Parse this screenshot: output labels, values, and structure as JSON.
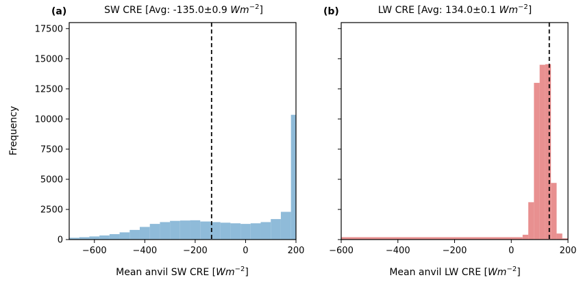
{
  "chart_data": [
    {
      "type": "bar",
      "panel_label": "(a)",
      "title_prefix": "SW CRE [Avg: -135.0±0.9 ",
      "title_unit": "Wm",
      "title_exp": "−2",
      "title_suffix": "]",
      "ylabel": "Frequency",
      "xlabel_prefix": "Mean anvil SW CRE [",
      "xlabel_unit": "Wm",
      "xlabel_exp": "−2",
      "xlabel_suffix": "]",
      "xlim": [
        -700,
        200
      ],
      "ylim": [
        0,
        18000
      ],
      "xticks": [
        -600,
        -400,
        -200,
        0,
        200
      ],
      "xtick_labels": [
        "−600",
        "−400",
        "−200",
        "0",
        "200"
      ],
      "yticks": [
        0,
        2500,
        5000,
        7500,
        10000,
        12500,
        15000,
        17500
      ],
      "ytick_labels": [
        "0",
        "2500",
        "5000",
        "7500",
        "10000",
        "12500",
        "15000",
        "17500"
      ],
      "mean": -135,
      "bar_color": "#8fbbd9",
      "bins": [
        {
          "x0": -700,
          "x1": -660,
          "y": 150
        },
        {
          "x0": -660,
          "x1": -620,
          "y": 200
        },
        {
          "x0": -620,
          "x1": -580,
          "y": 260
        },
        {
          "x0": -580,
          "x1": -540,
          "y": 340
        },
        {
          "x0": -540,
          "x1": -500,
          "y": 450
        },
        {
          "x0": -500,
          "x1": -460,
          "y": 600
        },
        {
          "x0": -460,
          "x1": -420,
          "y": 800
        },
        {
          "x0": -420,
          "x1": -380,
          "y": 1050
        },
        {
          "x0": -380,
          "x1": -340,
          "y": 1300
        },
        {
          "x0": -340,
          "x1": -300,
          "y": 1450
        },
        {
          "x0": -300,
          "x1": -260,
          "y": 1550
        },
        {
          "x0": -260,
          "x1": -220,
          "y": 1580
        },
        {
          "x0": -220,
          "x1": -180,
          "y": 1600
        },
        {
          "x0": -180,
          "x1": -140,
          "y": 1500
        },
        {
          "x0": -140,
          "x1": -100,
          "y": 1450
        },
        {
          "x0": -100,
          "x1": -60,
          "y": 1400
        },
        {
          "x0": -60,
          "x1": -20,
          "y": 1350
        },
        {
          "x0": -20,
          "x1": 20,
          "y": 1300
        },
        {
          "x0": 20,
          "x1": 60,
          "y": 1350
        },
        {
          "x0": 60,
          "x1": 100,
          "y": 1450
        },
        {
          "x0": 100,
          "x1": 140,
          "y": 1700
        },
        {
          "x0": 140,
          "x1": 180,
          "y": 2300
        },
        {
          "x0": 180,
          "x1": 220,
          "y": 10350
        }
      ]
    },
    {
      "type": "bar",
      "panel_label": "(b)",
      "title_prefix": "LW CRE [Avg: 134.0±0.1 ",
      "title_unit": "Wm",
      "title_exp": "−2",
      "title_suffix": "]",
      "xlabel_prefix": "Mean anvil LW CRE [",
      "xlabel_unit": "Wm",
      "xlabel_exp": "−2",
      "xlabel_suffix": "]",
      "xlim": [
        -600,
        200
      ],
      "ylim": [
        0,
        18000
      ],
      "xticks": [
        -600,
        -400,
        -200,
        0,
        200
      ],
      "xtick_labels": [
        "−600",
        "−400",
        "−200",
        "0",
        "200"
      ],
      "yticks": [
        0,
        2500,
        5000,
        7500,
        10000,
        12500,
        15000,
        17500
      ],
      "mean": 134,
      "bar_color": "#e89090",
      "bins": [
        {
          "x0": -600,
          "x1": 40,
          "y": 200
        },
        {
          "x0": 40,
          "x1": 60,
          "y": 400
        },
        {
          "x0": 60,
          "x1": 80,
          "y": 3100
        },
        {
          "x0": 80,
          "x1": 100,
          "y": 13000
        },
        {
          "x0": 100,
          "x1": 120,
          "y": 14500
        },
        {
          "x0": 120,
          "x1": 140,
          "y": 14550
        },
        {
          "x0": 140,
          "x1": 160,
          "y": 4700
        },
        {
          "x0": 160,
          "x1": 180,
          "y": 500
        },
        {
          "x0": 180,
          "x1": 200,
          "y": 100
        }
      ]
    }
  ]
}
